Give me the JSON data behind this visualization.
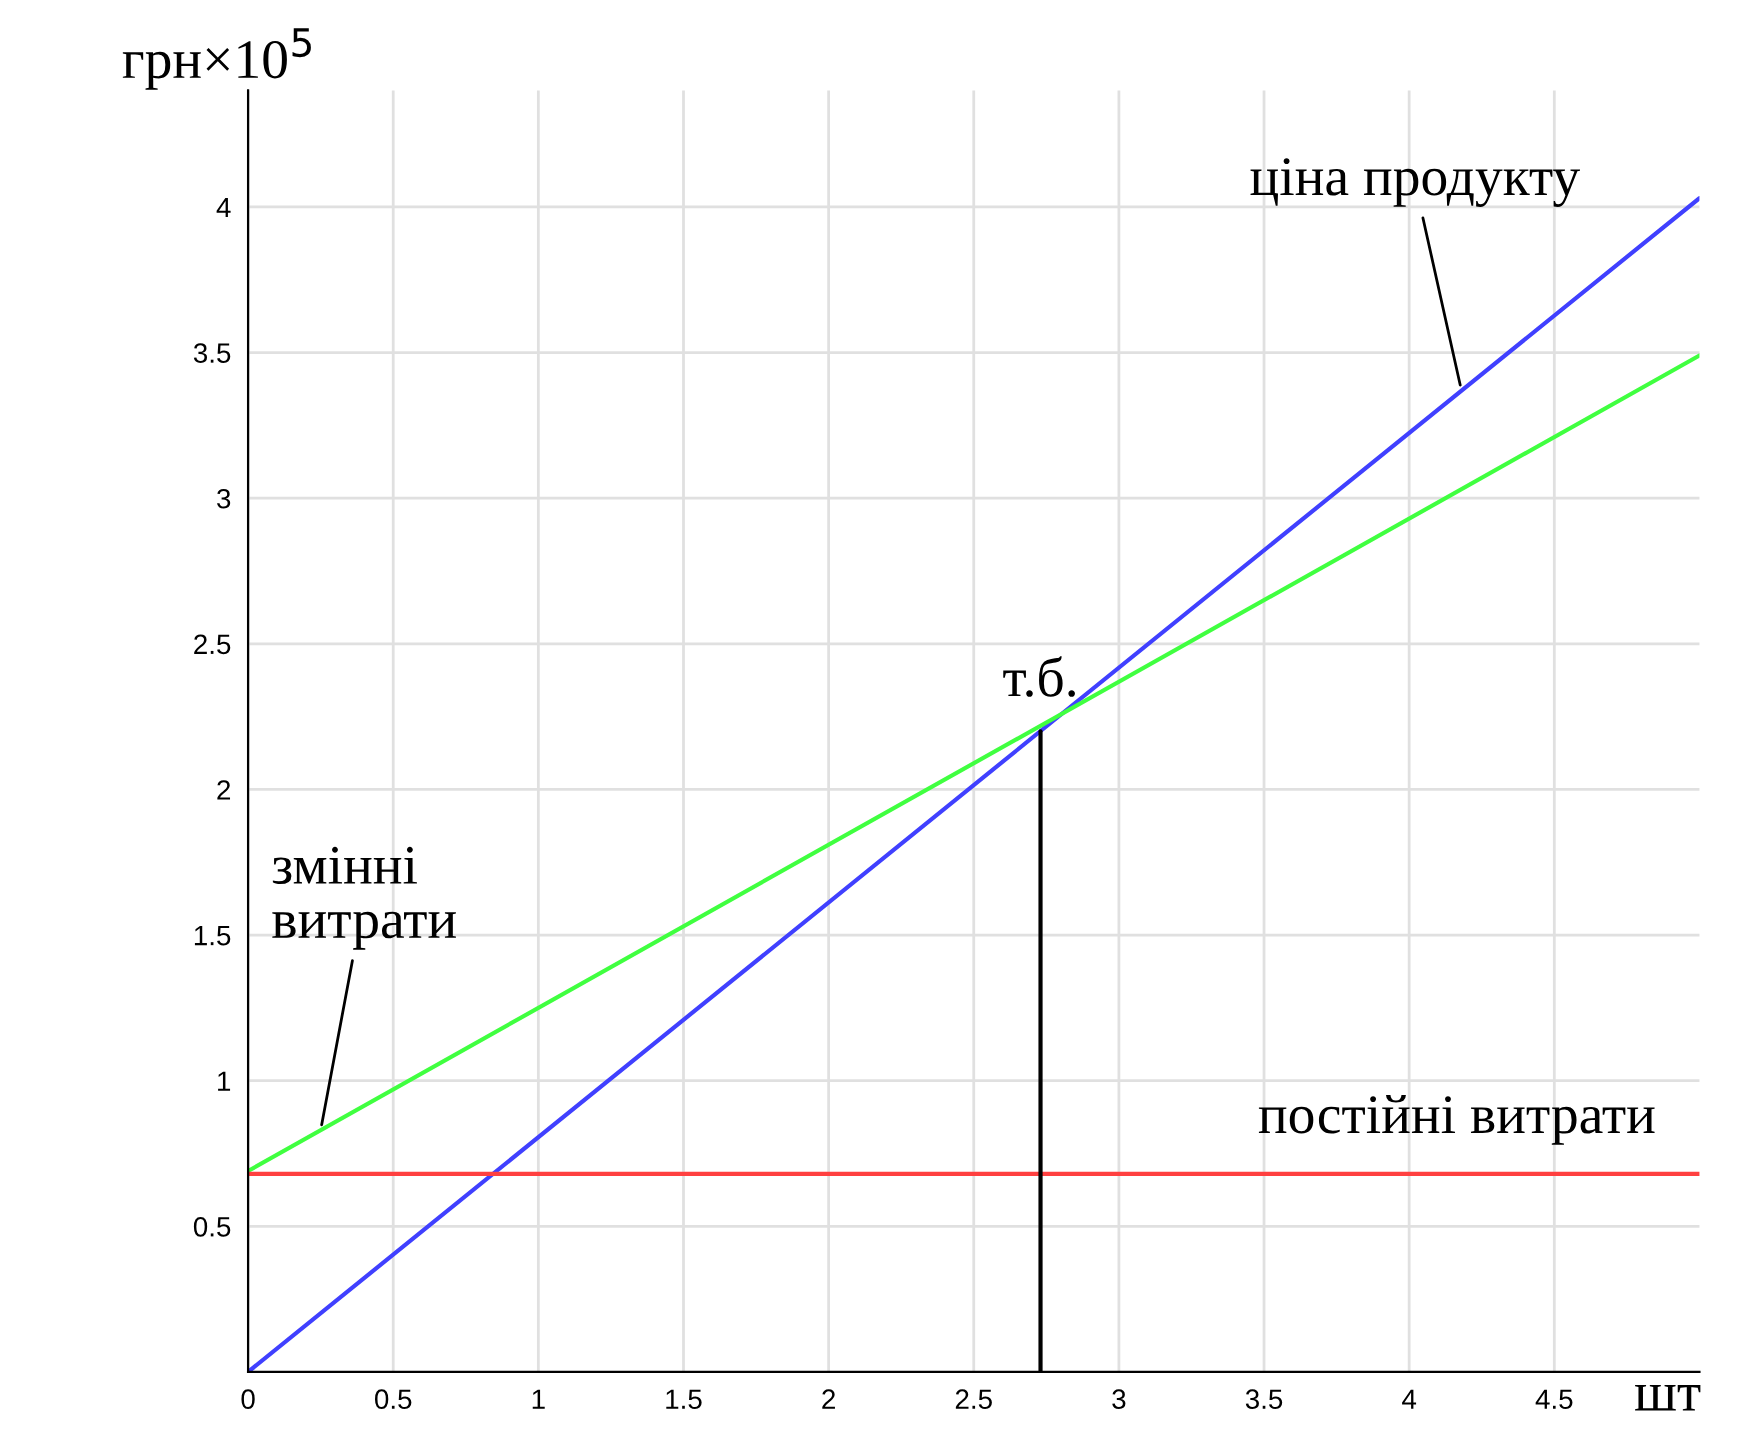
{
  "chart_data": {
    "type": "line",
    "xlabel": "шт",
    "ylabel": "грн×10$^{5}$",
    "x": [
      0,
      5
    ],
    "series": [
      {
        "color": "#4040ff",
        "values": [
          0,
          4.03
        ]
      },
      {
        "color": "#40ff40",
        "values": [
          0.69,
          3.49
        ]
      },
      {
        "color": "#ff4040",
        "values": [
          0.68,
          0.68
        ]
      },
      {
        "color": "#000000",
        "x": [
          2.73,
          2.73
        ],
        "values": [
          0,
          2.2
        ]
      }
    ],
    "xlim": [
      0,
      5
    ],
    "ylim": [
      0,
      4.4
    ],
    "xticks": [
      0,
      0.5,
      1,
      1.5,
      2,
      2.5,
      3,
      3.5,
      4,
      4.5
    ],
    "yticks": [
      0.5,
      1,
      1.5,
      2,
      2.5,
      3,
      3.5,
      4
    ],
    "grid": true,
    "annotations": [
      {
        "text": "ціна продукту",
        "x": 4.18,
        "y": 3.37
      },
      {
        "text": "змінні\nвитрати",
        "x": 0.25,
        "y": 0.83
      },
      {
        "text": "постійні витрати",
        "x": 4.5,
        "y": 0.68
      },
      {
        "text": "т.б.",
        "x": 2.73,
        "y": 2.2
      }
    ]
  }
}
